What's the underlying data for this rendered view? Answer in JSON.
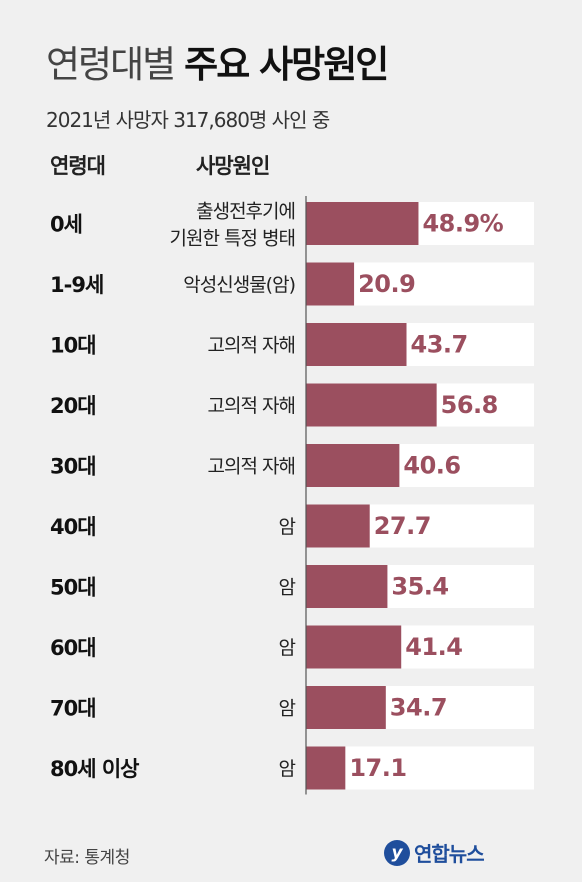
{
  "header": {
    "title_light": "연령대별",
    "title_bold": "주요 사망원인",
    "subtitle": "2021년 사망자 317,680명 사인 중"
  },
  "columns": {
    "age": "연령대",
    "cause": "사망원인"
  },
  "footer": {
    "source": "자료: 통계청",
    "logo_text": "연합뉴스",
    "logo_mark": "y"
  },
  "colors": {
    "bar": "#9b4f5f",
    "value_text": "#9b4f5f",
    "bar_track": "#ffffff",
    "axis": "#555555"
  },
  "chart_data": {
    "type": "bar",
    "orientation": "horizontal",
    "categories": [
      "0세",
      "1-9세",
      "10대",
      "20대",
      "30대",
      "40대",
      "50대",
      "60대",
      "70대",
      "80세 이상"
    ],
    "causes": [
      [
        "출생전후기에",
        "기원한 특정 병태"
      ],
      [
        "악성신생물(암)"
      ],
      [
        "고의적 자해"
      ],
      [
        "고의적 자해"
      ],
      [
        "고의적 자해"
      ],
      [
        "암"
      ],
      [
        "암"
      ],
      [
        "암"
      ],
      [
        "암"
      ],
      [
        "암"
      ]
    ],
    "values": [
      48.9,
      20.9,
      43.7,
      56.8,
      40.6,
      27.7,
      35.4,
      41.4,
      34.7,
      17.1
    ],
    "value_labels": [
      "48.9%",
      "20.9",
      "43.7",
      "56.8",
      "40.6",
      "27.7",
      "35.4",
      "41.4",
      "34.7",
      "17.1"
    ],
    "unit": "%",
    "xlim": [
      0,
      100
    ]
  }
}
